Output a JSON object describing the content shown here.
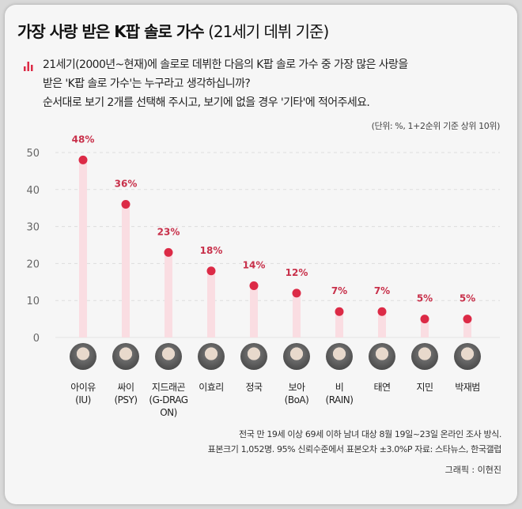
{
  "title": {
    "main": "가장 사랑 받은 K팝 솔로 가수",
    "sub": "(21세기 데뷔 기준)"
  },
  "question": {
    "icon": "bar-chart-icon",
    "lines": [
      "21세기(2000년~현재)에 솔로로 데뷔한 다음의 K팝 솔로 가수 중 가장 많은 사랑을",
      "받은 'K팝 솔로 가수'는 누구라고 생각하십니까?",
      "순서대로 보기 2개를 선택해 주시고, 보기에 없을 경우 '기타'에 적어주세요."
    ]
  },
  "unit_note": "(단위: %, 1+2순위 기준 상위 10위)",
  "chart_data": {
    "type": "lollipop",
    "categories": [
      "아이유 (IU)",
      "싸이 (PSY)",
      "지드래곤 (G-DRAGON)",
      "이효리",
      "정국",
      "보아 (BoA)",
      "비 (RAIN)",
      "태연",
      "지민",
      "박재범"
    ],
    "category_lines": [
      [
        "아이유",
        "(IU)"
      ],
      [
        "싸이",
        "(PSY)"
      ],
      [
        "지드래곤",
        "(G-DRAG",
        "ON)"
      ],
      [
        "이효리"
      ],
      [
        "정국"
      ],
      [
        "보아",
        "(BoA)"
      ],
      [
        "비",
        "(RAIN)"
      ],
      [
        "태연"
      ],
      [
        "지민"
      ],
      [
        "박재범"
      ]
    ],
    "values": [
      48,
      36,
      23,
      18,
      14,
      12,
      7,
      7,
      5,
      5
    ],
    "data_labels": [
      "48%",
      "36%",
      "23%",
      "18%",
      "14%",
      "12%",
      "7%",
      "7%",
      "5%",
      "5%"
    ],
    "yticks": [
      "0",
      "10",
      "20",
      "30",
      "40",
      "50"
    ],
    "ylim": [
      0,
      50
    ],
    "grid": true,
    "colors": {
      "dot": "#dc2a46",
      "stem": "#fadde2",
      "label": "#c8304a",
      "grid": "#dddddd"
    }
  },
  "footnote": {
    "lines": [
      "전국 만 19세 이상 69세 이하 남녀 대상 8월 19일~23일 온라인 조사 방식.",
      "표본크기 1,052명. 95% 신뢰수준에서 표본오차 ±3.0%P 자료: 스타뉴스, 한국갤럽"
    ]
  },
  "credit": "그래픽 : 이현진"
}
